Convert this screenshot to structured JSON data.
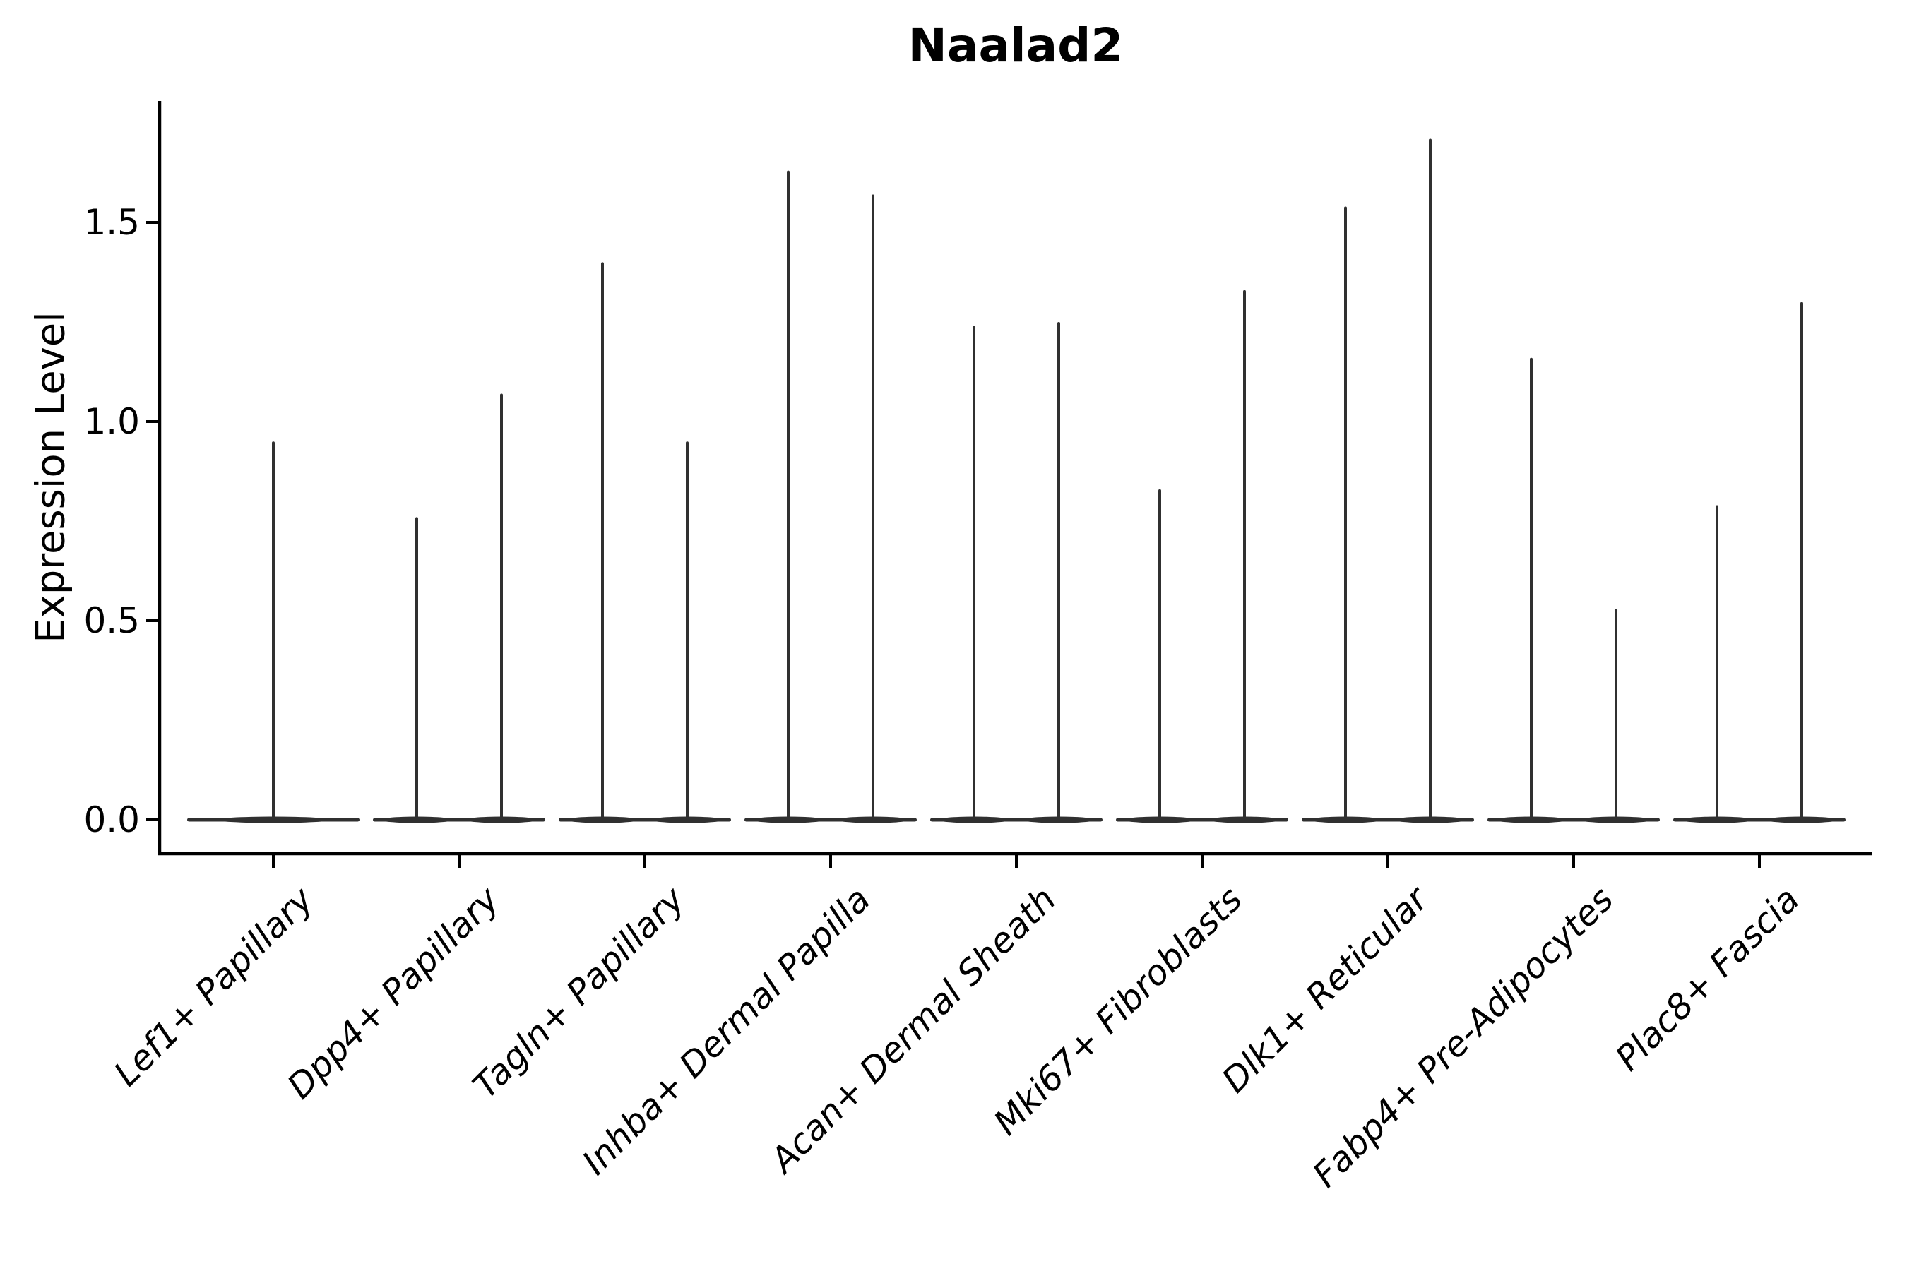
{
  "chart_data": {
    "type": "violin",
    "title": "Naalad2",
    "xlabel": "",
    "ylabel": "Expression Level",
    "yticks": [
      0.0,
      0.5,
      1.0,
      1.5
    ],
    "ytick_labels": [
      "0.0",
      "0.5",
      "1.0",
      "1.5"
    ],
    "ylim": [
      -0.09,
      1.8
    ],
    "grid": false,
    "legend": "none",
    "background_color": "#ffffff",
    "violin_color": "#303030",
    "axis_color": "#000000",
    "categories": [
      {
        "label": "Lef1+ Papillary",
        "spike_maxima": [
          0.95
        ]
      },
      {
        "label": "Dpp4+ Papillary",
        "spike_maxima": [
          0.76,
          1.07
        ]
      },
      {
        "label": "Tagln+ Papillary",
        "spike_maxima": [
          1.4,
          0.95
        ]
      },
      {
        "label": "Inhba+ Dermal Papilla",
        "spike_maxima": [
          1.63,
          1.57
        ]
      },
      {
        "label": "Acan+ Dermal Sheath",
        "spike_maxima": [
          1.24,
          1.25
        ]
      },
      {
        "label": "Mki67+ Fibroblasts",
        "spike_maxima": [
          0.83,
          1.33
        ]
      },
      {
        "label": "Dlk1+ Reticular",
        "spike_maxima": [
          1.54,
          1.71
        ]
      },
      {
        "label": "Fabp4+ Pre-Adipocytes",
        "spike_maxima": [
          1.16,
          0.53
        ]
      },
      {
        "label": "Plac8+ Fascia",
        "spike_maxima": [
          0.79,
          1.3
        ]
      }
    ]
  }
}
